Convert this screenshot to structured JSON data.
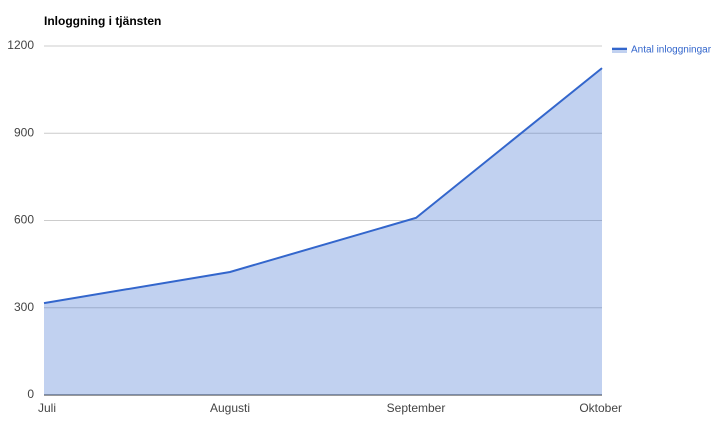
{
  "chart_data": {
    "type": "area",
    "title": "Inloggning i tjänsten",
    "categories": [
      "Juli",
      "Augusti",
      "September",
      "Oktober"
    ],
    "series": [
      {
        "name": "Antal inloggningar",
        "color": "#3366cc",
        "values": [
          316,
          423,
          609,
          1124
        ]
      }
    ],
    "ylim": [
      0,
      1200
    ],
    "yticks": [
      0,
      300,
      600,
      900,
      1200
    ],
    "grid": true,
    "legend": "right"
  }
}
